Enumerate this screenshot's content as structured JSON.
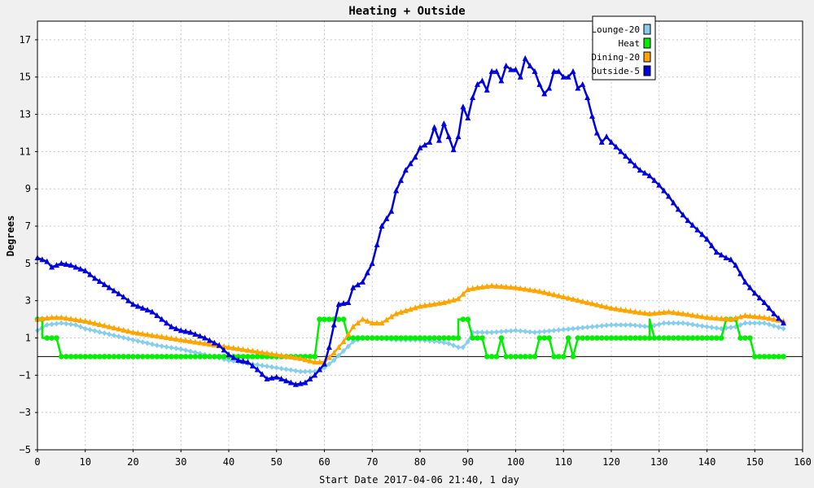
{
  "chart_data": {
    "type": "line",
    "title": "Heating + Outside",
    "xlabel": "Start Date 2017-04-06 21:40, 1 day",
    "ylabel": "Degrees",
    "xlim": [
      0,
      160
    ],
    "ylim": [
      -5,
      18
    ],
    "x_ticks": [
      0,
      10,
      20,
      30,
      40,
      50,
      60,
      70,
      80,
      90,
      100,
      110,
      120,
      130,
      140,
      150,
      160
    ],
    "y_ticks": [
      -5,
      -3,
      -1,
      1,
      3,
      5,
      7,
      9,
      11,
      13,
      15,
      17
    ],
    "grid": true,
    "legend_position": "top-right",
    "series": [
      {
        "name": "Lounge-20",
        "color": "#87ceeb",
        "marker": "diamond",
        "points": [
          [
            0,
            1.4
          ],
          [
            2,
            1.7
          ],
          [
            5,
            1.8
          ],
          [
            8,
            1.7
          ],
          [
            10,
            1.5
          ],
          [
            15,
            1.2
          ],
          [
            20,
            0.9
          ],
          [
            25,
            0.6
          ],
          [
            30,
            0.4
          ],
          [
            35,
            0.1
          ],
          [
            40,
            -0.2
          ],
          [
            45,
            -0.4
          ],
          [
            50,
            -0.6
          ],
          [
            55,
            -0.8
          ],
          [
            58,
            -0.8
          ],
          [
            60,
            -0.6
          ],
          [
            62,
            -0.2
          ],
          [
            64,
            0.3
          ],
          [
            66,
            0.8
          ],
          [
            68,
            1.0
          ],
          [
            70,
            1.0
          ],
          [
            75,
            0.9
          ],
          [
            80,
            0.9
          ],
          [
            84,
            0.8
          ],
          [
            86,
            0.7
          ],
          [
            88,
            0.5
          ],
          [
            89,
            0.5
          ],
          [
            90,
            0.8
          ],
          [
            91,
            1.3
          ],
          [
            95,
            1.3
          ],
          [
            100,
            1.4
          ],
          [
            104,
            1.3
          ],
          [
            108,
            1.4
          ],
          [
            112,
            1.5
          ],
          [
            116,
            1.6
          ],
          [
            120,
            1.7
          ],
          [
            124,
            1.7
          ],
          [
            128,
            1.6
          ],
          [
            131,
            1.8
          ],
          [
            135,
            1.8
          ],
          [
            140,
            1.6
          ],
          [
            143,
            1.5
          ],
          [
            146,
            1.6
          ],
          [
            148,
            1.8
          ],
          [
            152,
            1.8
          ],
          [
            156,
            1.5
          ]
        ]
      },
      {
        "name": "Heat",
        "color": "#00ee00",
        "marker": "circle",
        "points": [
          [
            0,
            2
          ],
          [
            1,
            2
          ],
          [
            1,
            1
          ],
          [
            4,
            1
          ],
          [
            5,
            0
          ],
          [
            58,
            0
          ],
          [
            59,
            2
          ],
          [
            64,
            2
          ],
          [
            65,
            1
          ],
          [
            88,
            1
          ],
          [
            88,
            2
          ],
          [
            90,
            2
          ],
          [
            91,
            1
          ],
          [
            93,
            1
          ],
          [
            94,
            0
          ],
          [
            96,
            0
          ],
          [
            97,
            1
          ],
          [
            98,
            0
          ],
          [
            104,
            0
          ],
          [
            105,
            1
          ],
          [
            107,
            1
          ],
          [
            108,
            0
          ],
          [
            110,
            0
          ],
          [
            111,
            1
          ],
          [
            112,
            0
          ],
          [
            113,
            1
          ],
          [
            128,
            1
          ],
          [
            128,
            2
          ],
          [
            129,
            1
          ],
          [
            143,
            1
          ],
          [
            144,
            2
          ],
          [
            146,
            2
          ],
          [
            147,
            1
          ],
          [
            149,
            1
          ],
          [
            150,
            0
          ],
          [
            156,
            0
          ]
        ]
      },
      {
        "name": "Dining-20",
        "color": "#ffa500",
        "marker": "triangle",
        "points": [
          [
            0,
            2.0
          ],
          [
            3,
            2.1
          ],
          [
            5,
            2.1
          ],
          [
            10,
            1.9
          ],
          [
            15,
            1.6
          ],
          [
            20,
            1.3
          ],
          [
            25,
            1.1
          ],
          [
            30,
            0.9
          ],
          [
            35,
            0.7
          ],
          [
            40,
            0.5
          ],
          [
            45,
            0.3
          ],
          [
            50,
            0.1
          ],
          [
            55,
            -0.1
          ],
          [
            58,
            -0.3
          ],
          [
            60,
            -0.3
          ],
          [
            62,
            0.2
          ],
          [
            64,
            0.8
          ],
          [
            66,
            1.6
          ],
          [
            68,
            2.0
          ],
          [
            70,
            1.8
          ],
          [
            72,
            1.8
          ],
          [
            75,
            2.3
          ],
          [
            80,
            2.7
          ],
          [
            85,
            2.9
          ],
          [
            88,
            3.1
          ],
          [
            90,
            3.6
          ],
          [
            92,
            3.7
          ],
          [
            95,
            3.8
          ],
          [
            100,
            3.7
          ],
          [
            105,
            3.5
          ],
          [
            110,
            3.2
          ],
          [
            115,
            2.9
          ],
          [
            120,
            2.6
          ],
          [
            125,
            2.4
          ],
          [
            128,
            2.3
          ],
          [
            132,
            2.4
          ],
          [
            135,
            2.3
          ],
          [
            140,
            2.1
          ],
          [
            145,
            2.0
          ],
          [
            148,
            2.2
          ],
          [
            152,
            2.1
          ],
          [
            156,
            1.9
          ]
        ]
      },
      {
        "name": "Outside-5",
        "color": "#0000dd",
        "marker": "triangle",
        "points": [
          [
            0,
            5.3
          ],
          [
            2,
            5.1
          ],
          [
            3,
            4.8
          ],
          [
            5,
            5.0
          ],
          [
            7,
            4.9
          ],
          [
            10,
            4.6
          ],
          [
            12,
            4.2
          ],
          [
            15,
            3.7
          ],
          [
            18,
            3.2
          ],
          [
            20,
            2.8
          ],
          [
            22,
            2.6
          ],
          [
            24,
            2.4
          ],
          [
            26,
            2.0
          ],
          [
            28,
            1.6
          ],
          [
            30,
            1.4
          ],
          [
            32,
            1.3
          ],
          [
            35,
            1.0
          ],
          [
            38,
            0.6
          ],
          [
            40,
            0.1
          ],
          [
            42,
            -0.2
          ],
          [
            44,
            -0.3
          ],
          [
            46,
            -0.7
          ],
          [
            48,
            -1.2
          ],
          [
            50,
            -1.1
          ],
          [
            52,
            -1.3
          ],
          [
            54,
            -1.5
          ],
          [
            56,
            -1.4
          ],
          [
            58,
            -1.0
          ],
          [
            60,
            -0.4
          ],
          [
            61,
            0.5
          ],
          [
            62,
            1.7
          ],
          [
            63,
            2.8
          ],
          [
            65,
            2.9
          ],
          [
            66,
            3.7
          ],
          [
            68,
            4.0
          ],
          [
            70,
            5.0
          ],
          [
            71,
            6.0
          ],
          [
            72,
            7.0
          ],
          [
            74,
            7.8
          ],
          [
            75,
            8.9
          ],
          [
            77,
            10.0
          ],
          [
            79,
            10.7
          ],
          [
            80,
            11.2
          ],
          [
            82,
            11.5
          ],
          [
            83,
            12.3
          ],
          [
            84,
            11.6
          ],
          [
            85,
            12.5
          ],
          [
            86,
            11.8
          ],
          [
            87,
            11.1
          ],
          [
            88,
            11.8
          ],
          [
            89,
            13.4
          ],
          [
            90,
            12.8
          ],
          [
            91,
            13.9
          ],
          [
            92,
            14.6
          ],
          [
            93,
            14.8
          ],
          [
            94,
            14.3
          ],
          [
            95,
            15.3
          ],
          [
            96,
            15.3
          ],
          [
            97,
            14.8
          ],
          [
            98,
            15.6
          ],
          [
            99,
            15.4
          ],
          [
            100,
            15.4
          ],
          [
            101,
            15.0
          ],
          [
            102,
            16.0
          ],
          [
            103,
            15.6
          ],
          [
            104,
            15.3
          ],
          [
            105,
            14.6
          ],
          [
            106,
            14.1
          ],
          [
            107,
            14.4
          ],
          [
            108,
            15.3
          ],
          [
            109,
            15.3
          ],
          [
            110,
            15.0
          ],
          [
            111,
            15.0
          ],
          [
            112,
            15.3
          ],
          [
            113,
            14.4
          ],
          [
            114,
            14.6
          ],
          [
            115,
            13.9
          ],
          [
            116,
            12.9
          ],
          [
            117,
            12.0
          ],
          [
            118,
            11.5
          ],
          [
            119,
            11.8
          ],
          [
            120,
            11.5
          ],
          [
            122,
            11.0
          ],
          [
            124,
            10.5
          ],
          [
            126,
            10.0
          ],
          [
            128,
            9.7
          ],
          [
            130,
            9.2
          ],
          [
            132,
            8.6
          ],
          [
            134,
            7.9
          ],
          [
            136,
            7.3
          ],
          [
            138,
            6.8
          ],
          [
            140,
            6.3
          ],
          [
            142,
            5.6
          ],
          [
            144,
            5.3
          ],
          [
            145,
            5.2
          ],
          [
            146,
            4.9
          ],
          [
            148,
            4.0
          ],
          [
            150,
            3.4
          ],
          [
            152,
            2.9
          ],
          [
            154,
            2.3
          ],
          [
            156,
            1.8
          ]
        ]
      }
    ]
  }
}
